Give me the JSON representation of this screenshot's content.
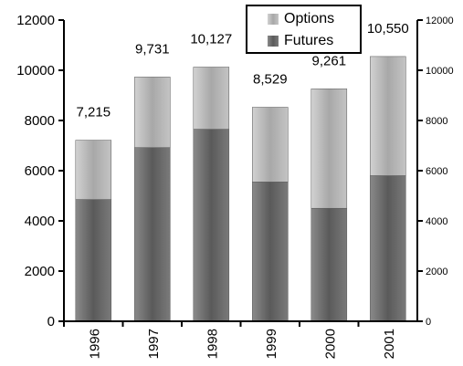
{
  "chart_data": {
    "type": "bar",
    "stacked": true,
    "categories": [
      "1996",
      "1997",
      "1998",
      "1999",
      "2000",
      "2001"
    ],
    "series": [
      {
        "name": "Futures",
        "values": [
          4850,
          6920,
          7650,
          5550,
          4500,
          5800
        ],
        "color": "#6b6b6b"
      },
      {
        "name": "Options",
        "values": [
          2365,
          2811,
          2477,
          2979,
          4761,
          4750
        ],
        "color": "#b8b8b8"
      }
    ],
    "totals": [
      7215,
      9731,
      10127,
      8529,
      9261,
      10550
    ],
    "total_labels": [
      "7,215",
      "9,731",
      "10,127",
      "8,529",
      "9,261",
      "10,550"
    ],
    "ylim": [
      0,
      12000
    ],
    "yticks": [
      "0",
      "2000",
      "4000",
      "6000",
      "8000",
      "10000",
      "12000"
    ],
    "legend_position": "top-right",
    "grid": false
  }
}
